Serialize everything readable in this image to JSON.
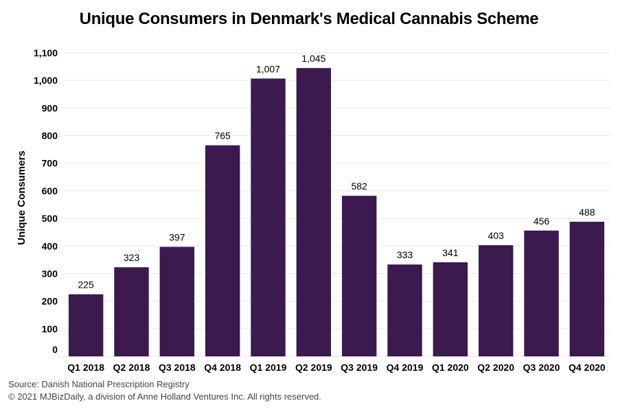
{
  "chart_data": {
    "type": "bar",
    "title": "Unique Consumers in Denmark's Medical Cannabis Scheme",
    "xlabel": "",
    "ylabel": "Unique Consumers",
    "categories": [
      "Q1 2018",
      "Q2 2018",
      "Q3 2018",
      "Q4 2018",
      "Q1 2019",
      "Q2 2019",
      "Q3 2019",
      "Q4 2019",
      "Q1 2020",
      "Q2 2020",
      "Q3 2020",
      "Q4 2020"
    ],
    "values": [
      225,
      323,
      397,
      765,
      1007,
      1045,
      582,
      333,
      341,
      403,
      456,
      488
    ],
    "value_labels": [
      "225",
      "323",
      "397",
      "765",
      "1,007",
      "1,045",
      "582",
      "333",
      "341",
      "403",
      "456",
      "488"
    ],
    "ylim": [
      0,
      1100
    ],
    "yticks": [
      0,
      100,
      200,
      300,
      400,
      500,
      600,
      700,
      800,
      900,
      1000,
      1100
    ],
    "ytick_labels": [
      "0",
      "100",
      "200",
      "300",
      "400",
      "500",
      "600",
      "700",
      "800",
      "900",
      "1,000",
      "1,100"
    ],
    "grid": true,
    "bar_color": "#3b1a4f",
    "grid_color": "#e6e6e6"
  },
  "footer": {
    "source": "Source: Danish National Prescription Registry",
    "copyright": "© 2021 MJBizDaily, a division of Anne Holland Ventures Inc. All rights reserved."
  }
}
